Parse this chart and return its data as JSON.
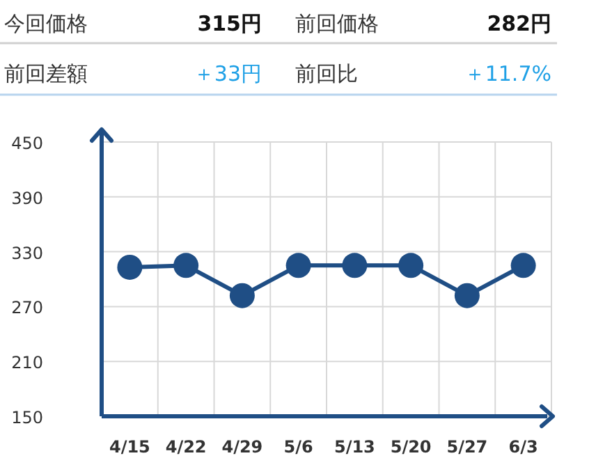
{
  "chart_data": {
    "type": "line",
    "annotations": [
      "今回価格",
      "315円",
      "前回価格",
      "282円",
      "前回差額",
      "＋33円",
      "前回比",
      "＋11.7%"
    ],
    "categories": [
      "4/15",
      "4/22",
      "4/29",
      "5/6",
      "5/13",
      "5/20",
      "5/27",
      "6/3"
    ],
    "series": [
      {
        "color": "#1f4e85",
        "values": [
          313,
          315,
          282,
          315,
          315,
          315,
          282,
          315
        ]
      }
    ],
    "ylim": [
      150,
      450
    ],
    "yticks": [
      150,
      210,
      270,
      330,
      390,
      450
    ],
    "grid": true,
    "marker": "circle",
    "line_style": "solid"
  }
}
